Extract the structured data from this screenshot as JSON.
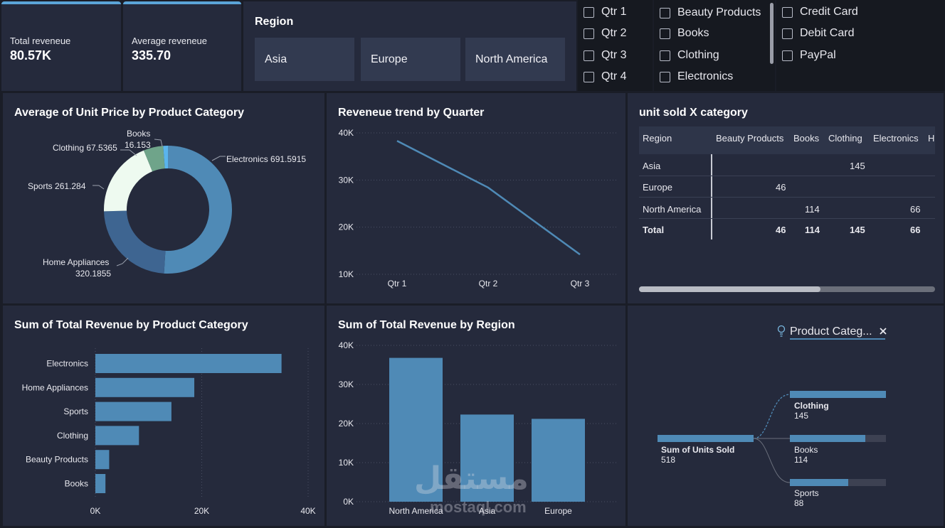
{
  "kpis": [
    {
      "label": "Total reveneue",
      "value": "80.57K"
    },
    {
      "label": "Average reveneue",
      "value": "335.70"
    }
  ],
  "region_slicer": {
    "title": "Region",
    "options": [
      "Asia",
      "Europe",
      "North America"
    ]
  },
  "quarter_slicer": [
    "Qtr 1",
    "Qtr 2",
    "Qtr 3",
    "Qtr 4"
  ],
  "category_slicer": [
    "Beauty Products",
    "Books",
    "Clothing",
    "Electronics"
  ],
  "payment_slicer": [
    "Credit Card",
    "Debit Card",
    "PayPal"
  ],
  "donut": {
    "title": "Average of Unit Price by Product Category",
    "labels": {
      "books_name": "Books",
      "books_value": "16.153",
      "clothing": "Clothing 67.5365",
      "electronics": "Electronics 691.5915",
      "sports": "Sports 261.284",
      "home_name": "Home Appliances",
      "home_value": "320.1855"
    }
  },
  "line": {
    "title": "Reveneue trend by Quarter",
    "y_ticks": [
      "40K",
      "30K",
      "20K",
      "10K"
    ],
    "x_ticks": [
      "Qtr 1",
      "Qtr 2",
      "Qtr 3"
    ]
  },
  "matrix": {
    "title": "unit sold X category",
    "headers": [
      "Region",
      "Beauty Products",
      "Books",
      "Clothing",
      "Electronics",
      "H"
    ],
    "rows": [
      {
        "region": "Asia",
        "beauty": "",
        "books": "",
        "clothing": "145",
        "electronics": ""
      },
      {
        "region": "Europe",
        "beauty": "46",
        "books": "",
        "clothing": "",
        "electronics": ""
      },
      {
        "region": "North America",
        "beauty": "",
        "books": "114",
        "clothing": "",
        "electronics": "66"
      }
    ],
    "total": {
      "region": "Total",
      "beauty": "46",
      "books": "114",
      "clothing": "145",
      "electronics": "66"
    }
  },
  "hbar": {
    "title": "Sum of Total Revenue by Product Category",
    "x_ticks": [
      "0K",
      "20K",
      "40K"
    ]
  },
  "vbar": {
    "title": "Sum of Total Revenue by Region",
    "y_ticks": [
      "40K",
      "30K",
      "20K",
      "10K",
      "0K"
    ]
  },
  "decomp": {
    "filter_label": "Product Categ...",
    "root_label": "Sum of Units Sold",
    "root_value": "518",
    "nodes": [
      {
        "label": "Clothing",
        "value": "145"
      },
      {
        "label": "Books",
        "value": "114"
      },
      {
        "label": "Sports",
        "value": "88"
      }
    ]
  },
  "chart_data": [
    {
      "type": "pie",
      "title": "Average of Unit Price by Product Category",
      "categories": [
        "Electronics",
        "Home Appliances",
        "Sports",
        "Clothing",
        "Books"
      ],
      "values": [
        691.5915,
        320.1855,
        261.284,
        67.5365,
        16.153
      ]
    },
    {
      "type": "line",
      "title": "Reveneue trend by Quarter",
      "categories": [
        "Qtr 1",
        "Qtr 2",
        "Qtr 3"
      ],
      "values": [
        38300,
        28400,
        14200
      ],
      "ylim": [
        10000,
        40000
      ]
    },
    {
      "type": "bar",
      "orientation": "horizontal",
      "title": "Sum of Total Revenue by Product Category",
      "categories": [
        "Electronics",
        "Home Appliances",
        "Sports",
        "Clothing",
        "Beauty Products",
        "Books"
      ],
      "values": [
        35000,
        18600,
        14300,
        8200,
        2600,
        1900
      ],
      "xlim": [
        0,
        40000
      ]
    },
    {
      "type": "bar",
      "title": "Sum of Total Revenue by Region",
      "categories": [
        "North America",
        "Asia",
        "Europe"
      ],
      "values": [
        36800,
        22300,
        21200
      ],
      "ylim": [
        0,
        40000
      ]
    }
  ],
  "colors": {
    "bar": "#4f8ab6",
    "donut": [
      "#4f8ab6",
      "#3e6591",
      "#eefaf0",
      "#6fa48a",
      "#5ab4ec"
    ],
    "background": "#1a1d27",
    "card": "#252a3c",
    "accent": "#5ba4d8"
  },
  "watermark": {
    "arabic": "مستقل",
    "latin": "mostaql.com"
  }
}
